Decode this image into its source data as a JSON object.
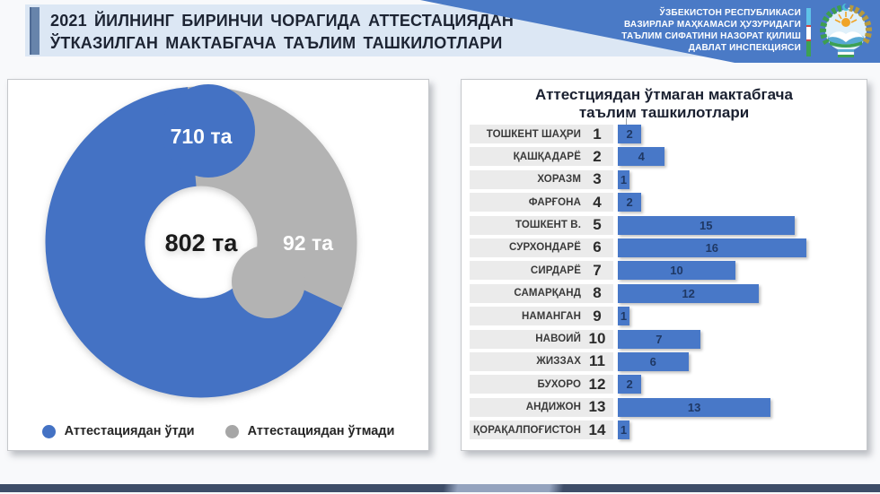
{
  "header": {
    "title_line1": "2021 ЙИЛНИНГ БИРИНЧИ ЧОРАГИДА АТТЕСТАЦИЯДАН",
    "title_line2": "ЎТКАЗИЛГАН МАКТАБГАЧА ТАЪЛИМ ТАШКИЛОТЛАРИ",
    "ministry_lines": [
      "ЎЗБЕКИСТОН РЕСПУБЛИКАСИ",
      "ВАЗИРЛАР МАҲКАМАСИ ҲУЗУРИДАГИ",
      "ТАЪЛИМ СИФАТИНИ НАЗОРАТ ҚИЛИШ",
      "ДАВЛАТ ИНСПЕКЦИЯСИ"
    ]
  },
  "donut": {
    "label_passed": "710 та",
    "label_failed": "92 та",
    "label_total": "802 та",
    "legend": [
      {
        "label": "Аттестациядан ўтди",
        "color": "#4472c4"
      },
      {
        "label": "Аттестациядан ўтмади",
        "color": "#a6a6a6"
      }
    ]
  },
  "right_panel": {
    "title_line1": "Аттестциядан ўтмаган мактабгача",
    "title_line2": "таълим ташкилотлари"
  },
  "chart_data": [
    {
      "type": "pie",
      "subtype": "doughnut",
      "labels": [
        "Аттестациядан ўтди",
        "Аттестациядан ўтмади"
      ],
      "values": [
        710,
        92
      ],
      "total": 802,
      "unit": "та",
      "colors": [
        "#4472c4",
        "#b3b3b3"
      ],
      "center_text": "802 та",
      "legend_position": "bottom"
    },
    {
      "type": "bar",
      "orientation": "horizontal",
      "title": "Аттестциядан ўтмаган мактабгача таълим ташкилотлари",
      "categories": [
        "ТОШКЕНТ ШАҲРИ",
        "ҚАШҚАДАРЁ",
        "ХОРАЗМ",
        "ФАРҒОНА",
        "ТОШКЕНТ В.",
        "СУРХОНДАРЁ",
        "СИРДАРЁ",
        "САМАРҚАНД",
        "НАМАНГАН",
        "НАВОИЙ",
        "ЖИЗЗАХ",
        "БУХОРО",
        "АНДИЖОН",
        "ҚОРАҚАЛПОҒИСТОН"
      ],
      "ranks": [
        1,
        2,
        3,
        4,
        5,
        6,
        7,
        8,
        9,
        10,
        11,
        12,
        13,
        14
      ],
      "values": [
        2,
        4,
        1,
        2,
        15,
        16,
        10,
        12,
        1,
        7,
        6,
        2,
        13,
        1
      ],
      "xlim": [
        0,
        16
      ],
      "bar_color": "#4878c8",
      "value_label_color": "#1f3864",
      "grid": false
    }
  ],
  "colors": {
    "header_band": "#dce7f4",
    "banner_blue": "#4a7ac6",
    "donut_blue": "#4472c4",
    "donut_gray": "#b3b3b3",
    "row_band": "#ebebeb",
    "footer_dark": "#3e4d68",
    "footer_light": "#94a3be"
  }
}
